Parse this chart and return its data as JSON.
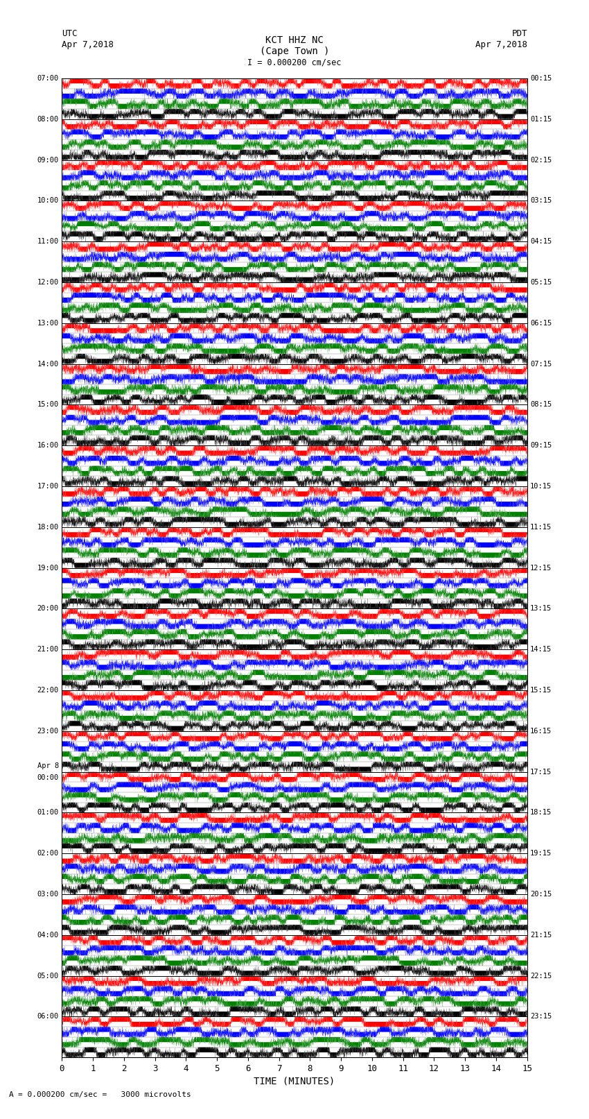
{
  "title_line1": "KCT HHZ NC",
  "title_line2": "(Cape Town )",
  "scale_text": "I = 0.000200 cm/sec",
  "left_label": "UTC",
  "left_date": "Apr 7,2018",
  "right_label": "PDT",
  "right_date": "Apr 7,2018",
  "left_times": [
    "07:00",
    "08:00",
    "09:00",
    "10:00",
    "11:00",
    "12:00",
    "13:00",
    "14:00",
    "15:00",
    "16:00",
    "17:00",
    "18:00",
    "19:00",
    "20:00",
    "21:00",
    "22:00",
    "23:00",
    "Apr 8\n00:00",
    "01:00",
    "02:00",
    "03:00",
    "04:00",
    "05:00",
    "06:00"
  ],
  "right_times": [
    "00:15",
    "01:15",
    "02:15",
    "03:15",
    "04:15",
    "05:15",
    "06:15",
    "07:15",
    "08:15",
    "09:15",
    "10:15",
    "11:15",
    "12:15",
    "13:15",
    "14:15",
    "15:15",
    "16:15",
    "17:15",
    "18:15",
    "19:15",
    "20:15",
    "21:15",
    "22:15",
    "23:15"
  ],
  "xlabel": "TIME (MINUTES)",
  "bottom_label": "= 0.000200 cm/sec =   3000 microvolts",
  "xlim": [
    0,
    15
  ],
  "xticks": [
    0,
    1,
    2,
    3,
    4,
    5,
    6,
    7,
    8,
    9,
    10,
    11,
    12,
    13,
    14,
    15
  ],
  "n_traces": 24,
  "colors": [
    "red",
    "blue",
    "green",
    "black"
  ],
  "bg_color": "white",
  "fig_width": 8.5,
  "fig_height": 16.13,
  "dpi": 100,
  "n_subtraces": 4,
  "samples": 6000
}
